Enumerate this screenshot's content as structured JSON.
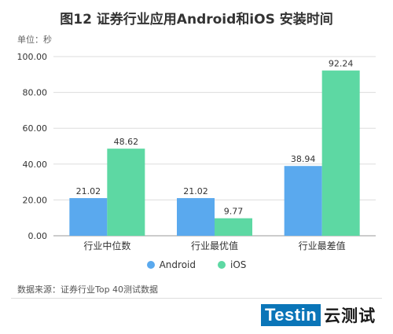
{
  "page": {
    "title": "图12 证券行业应用Android和iOS 安装时间",
    "unit": "单位：秒",
    "source": "数据来源：证券行业Top 40测试数据",
    "logo_text": "Testin",
    "logo_cn": "云测试"
  },
  "colors": {
    "android": "#5aa9ee",
    "ios": "#5dd8a3"
  },
  "chart_data": {
    "type": "bar",
    "categories": [
      "行业中位数",
      "行业最优值",
      "行业最差值"
    ],
    "series": [
      {
        "name": "Android",
        "values": [
          21.02,
          21.02,
          38.94
        ]
      },
      {
        "name": "iOS",
        "values": [
          48.62,
          9.77,
          92.24
        ]
      }
    ],
    "ylim": [
      0,
      100
    ],
    "yticks": [
      "0.00",
      "20.00",
      "40.00",
      "60.00",
      "80.00",
      "100.00"
    ],
    "ytick_values": [
      0,
      20,
      40,
      60,
      80,
      100
    ],
    "legend_position": "bottom",
    "grid": true
  }
}
